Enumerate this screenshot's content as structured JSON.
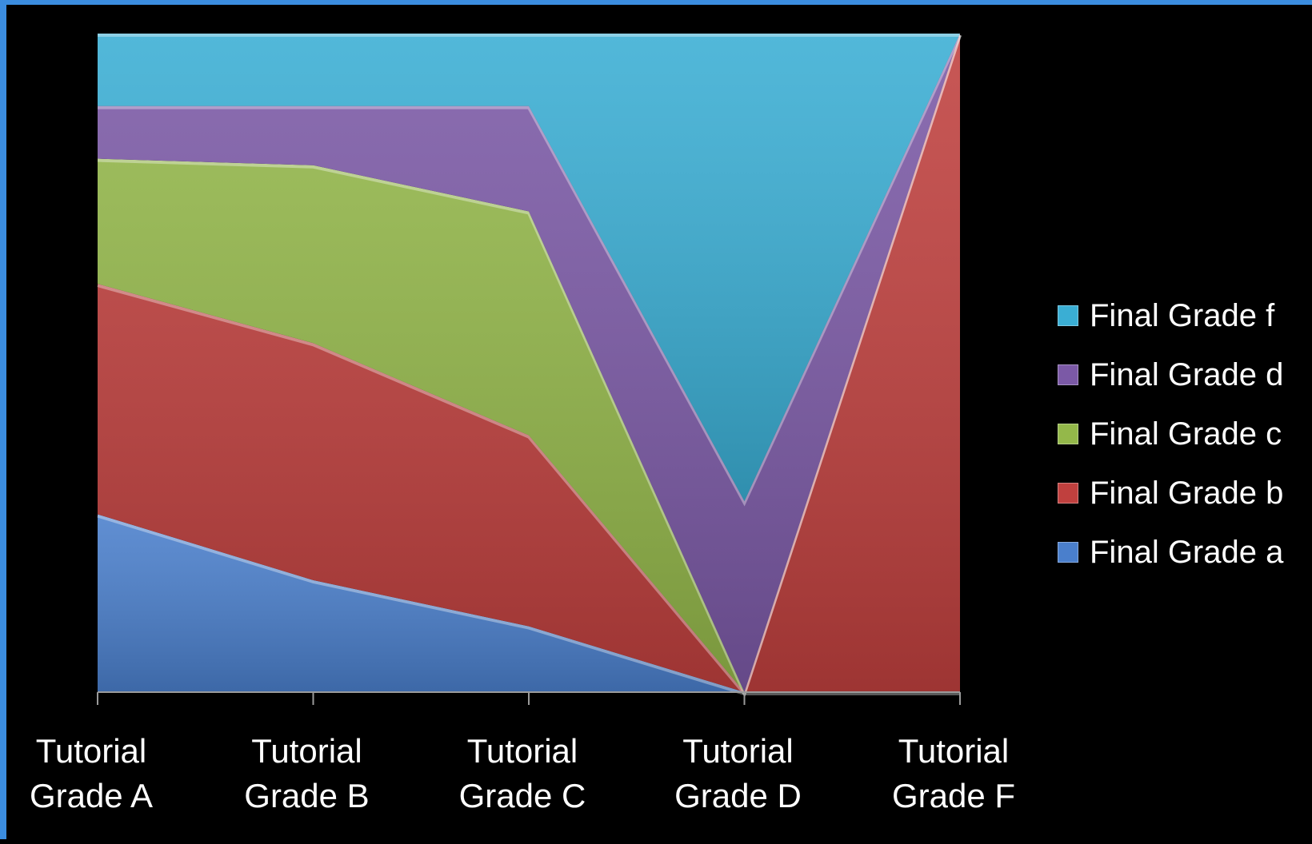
{
  "chart_data": {
    "type": "area",
    "stacked": "percent",
    "categories": [
      "Tutorial\nGrade A",
      "Tutorial\nGrade B",
      "Tutorial\nGrade C",
      "Tutorial\nGrade D",
      "Tutorial\nGrade F"
    ],
    "series": [
      {
        "name": "Final Grade a",
        "color": "#4a7fcc",
        "values": [
          27,
          17,
          10,
          0,
          0
        ]
      },
      {
        "name": "Final Grade b",
        "color": "#c0403e",
        "values": [
          35,
          36,
          29,
          0,
          100
        ]
      },
      {
        "name": "Final Grade c",
        "color": "#94b84a",
        "values": [
          19,
          27,
          34,
          0,
          0
        ]
      },
      {
        "name": "Final Grade d",
        "color": "#7b59a6",
        "values": [
          8,
          9,
          16,
          29,
          0
        ]
      },
      {
        "name": "Final Grade f",
        "color": "#3aaed4",
        "values": [
          11,
          11,
          11,
          71,
          0
        ]
      }
    ],
    "ylim": [
      0,
      100
    ],
    "legend_position": "right",
    "grid": false,
    "background": "#000000"
  }
}
